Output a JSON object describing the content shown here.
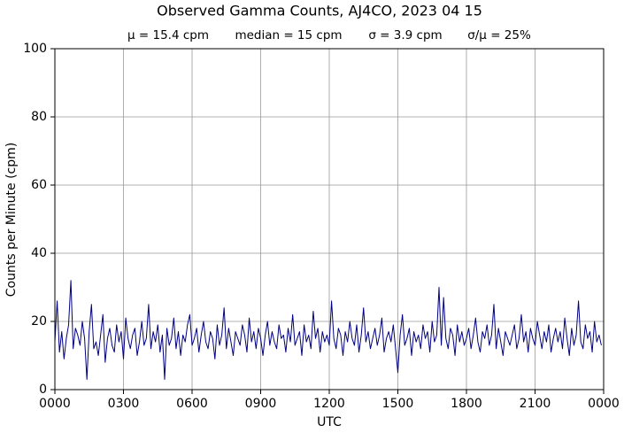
{
  "chart_data": {
    "type": "line",
    "title": "Observed Gamma Counts, AJ4CO, 2023 04 15",
    "annotations": [
      "μ = 15.4 cpm",
      "median = 15 cpm",
      "σ = 3.9 cpm",
      "σ/μ = 25%"
    ],
    "xlabel": "UTC",
    "ylabel": "Counts per Minute (cpm)",
    "color": "#000080",
    "grid": true,
    "xlim": [
      0,
      1440
    ],
    "xticks": [
      {
        "value": 0,
        "label": "0000"
      },
      {
        "value": 180,
        "label": "0300"
      },
      {
        "value": 360,
        "label": "0600"
      },
      {
        "value": 540,
        "label": "0900"
      },
      {
        "value": 720,
        "label": "1200"
      },
      {
        "value": 900,
        "label": "1500"
      },
      {
        "value": 1080,
        "label": "1800"
      },
      {
        "value": 1260,
        "label": "2100"
      },
      {
        "value": 1440,
        "label": "0000"
      }
    ],
    "ylim": [
      0,
      100
    ],
    "yticks": [
      0,
      20,
      40,
      60,
      80,
      100
    ],
    "x": [
      0,
      6,
      12,
      18,
      24,
      30,
      36,
      42,
      48,
      54,
      60,
      66,
      72,
      78,
      84,
      90,
      96,
      102,
      108,
      114,
      120,
      126,
      132,
      138,
      144,
      150,
      156,
      162,
      168,
      174,
      180,
      186,
      192,
      198,
      204,
      210,
      216,
      222,
      228,
      234,
      240,
      246,
      252,
      258,
      264,
      270,
      276,
      282,
      288,
      294,
      300,
      306,
      312,
      318,
      324,
      330,
      336,
      342,
      348,
      354,
      360,
      366,
      372,
      378,
      384,
      390,
      396,
      402,
      408,
      414,
      420,
      426,
      432,
      438,
      444,
      450,
      456,
      462,
      468,
      474,
      480,
      486,
      492,
      498,
      504,
      510,
      516,
      522,
      528,
      534,
      540,
      546,
      552,
      558,
      564,
      570,
      576,
      582,
      588,
      594,
      600,
      606,
      612,
      618,
      624,
      630,
      636,
      642,
      648,
      654,
      660,
      666,
      672,
      678,
      684,
      690,
      696,
      702,
      708,
      714,
      720,
      726,
      732,
      738,
      744,
      750,
      756,
      762,
      768,
      774,
      780,
      786,
      792,
      798,
      804,
      810,
      816,
      822,
      828,
      834,
      840,
      846,
      852,
      858,
      864,
      870,
      876,
      882,
      888,
      894,
      900,
      906,
      912,
      918,
      924,
      930,
      936,
      942,
      948,
      954,
      960,
      966,
      972,
      978,
      984,
      990,
      996,
      1002,
      1008,
      1014,
      1020,
      1026,
      1032,
      1038,
      1044,
      1050,
      1056,
      1062,
      1068,
      1074,
      1080,
      1086,
      1092,
      1098,
      1104,
      1110,
      1116,
      1122,
      1128,
      1134,
      1140,
      1146,
      1152,
      1158,
      1164,
      1170,
      1176,
      1182,
      1188,
      1194,
      1200,
      1206,
      1212,
      1218,
      1224,
      1230,
      1236,
      1242,
      1248,
      1254,
      1260,
      1266,
      1272,
      1278,
      1284,
      1290,
      1296,
      1302,
      1308,
      1314,
      1320,
      1326,
      1332,
      1338,
      1344,
      1350,
      1356,
      1362,
      1368,
      1374,
      1380,
      1386,
      1392,
      1398,
      1404,
      1410,
      1416,
      1422,
      1428,
      1434
    ],
    "values": [
      14,
      26,
      11,
      17,
      9,
      15,
      19,
      32,
      12,
      18,
      16,
      13,
      20,
      15,
      3,
      17,
      25,
      12,
      14,
      10,
      16,
      22,
      8,
      15,
      18,
      13,
      11,
      19,
      14,
      17,
      9,
      21,
      15,
      12,
      16,
      18,
      10,
      14,
      20,
      13,
      15,
      25,
      12,
      17,
      14,
      19,
      11,
      16,
      3,
      18,
      13,
      15,
      21,
      12,
      17,
      10,
      16,
      14,
      19,
      22,
      13,
      15,
      18,
      11,
      16,
      20,
      14,
      12,
      17,
      15,
      9,
      19,
      13,
      16,
      24,
      12,
      18,
      14,
      10,
      17,
      15,
      13,
      19,
      16,
      11,
      21,
      14,
      17,
      12,
      18,
      15,
      10,
      16,
      20,
      13,
      17,
      14,
      12,
      19,
      15,
      16,
      11,
      18,
      14,
      22,
      13,
      15,
      17,
      10,
      19,
      14,
      16,
      12,
      23,
      15,
      18,
      11,
      17,
      14,
      16,
      13,
      26,
      15,
      12,
      18,
      16,
      10,
      17,
      14,
      20,
      15,
      13,
      19,
      11,
      16,
      24,
      14,
      17,
      12,
      15,
      18,
      13,
      16,
      21,
      11,
      15,
      17,
      14,
      19,
      12,
      5,
      16,
      22,
      13,
      15,
      18,
      10,
      17,
      14,
      16,
      12,
      19,
      15,
      17,
      11,
      20,
      14,
      16,
      30,
      13,
      27,
      15,
      12,
      18,
      16,
      10,
      19,
      14,
      17,
      13,
      15,
      18,
      12,
      16,
      21,
      14,
      11,
      17,
      15,
      19,
      13,
      16,
      25,
      12,
      18,
      14,
      10,
      17,
      15,
      13,
      16,
      19,
      12,
      15,
      22,
      14,
      17,
      11,
      18,
      15,
      13,
      20,
      16,
      12,
      17,
      14,
      19,
      11,
      15,
      18,
      14,
      17,
      12,
      21,
      15,
      10,
      18,
      13,
      16,
      26,
      14,
      12,
      19,
      15,
      17,
      11,
      20,
      14,
      16,
      13
    ]
  }
}
